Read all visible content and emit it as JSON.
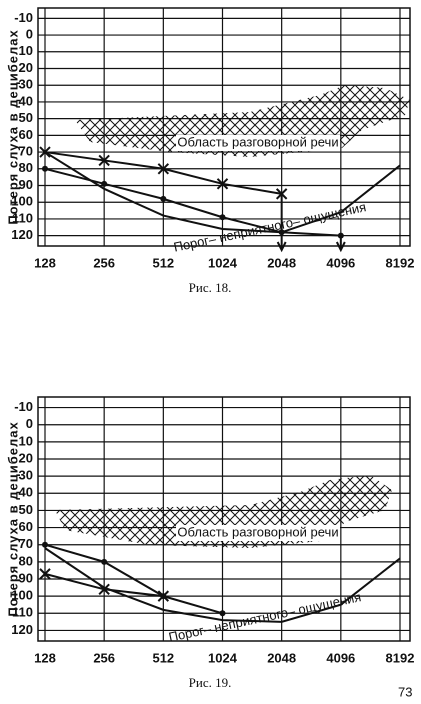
{
  "page_number": "73",
  "chart_data": [
    {
      "type": "line",
      "caption": "Рис. 18.",
      "ylabel": "Потеря слуха в децибелах",
      "x_scale": "log",
      "xlim": [
        128,
        8192
      ],
      "xticks": [
        128,
        256,
        512,
        1024,
        2048,
        4096,
        8192
      ],
      "ylim": [
        125,
        -15
      ],
      "yticks": [
        -10,
        0,
        10,
        20,
        30,
        40,
        50,
        60,
        70,
        80,
        90,
        100,
        110,
        120
      ],
      "grid": true,
      "annotations": [
        "Область разговорной речи",
        "Порог– неприятного– ощущения"
      ],
      "series": [
        {
          "color": "#111111",
          "marker": "none",
          "end_arrow": false,
          "x": [
            128,
            256,
            512,
            1024,
            2048,
            4096,
            8192
          ],
          "values": [
            70,
            92,
            108,
            116,
            118,
            106,
            78
          ]
        },
        {
          "color": "#111111",
          "marker": "x",
          "end_arrow": true,
          "x": [
            128,
            256,
            512,
            1024,
            2048
          ],
          "values": [
            70,
            75,
            80,
            89,
            95
          ]
        },
        {
          "color": "#111111",
          "marker": "o",
          "end_arrow": true,
          "x": [
            128,
            256,
            512,
            1024,
            2048,
            4096
          ],
          "values": [
            80,
            89,
            98,
            109,
            118,
            120
          ]
        }
      ]
    },
    {
      "type": "line",
      "caption": "Рис. 19.",
      "ylabel": "Потеря слуха в децибелах",
      "x_scale": "log",
      "xlim": [
        128,
        8192
      ],
      "xticks": [
        128,
        256,
        512,
        1024,
        2048,
        4096,
        8192
      ],
      "ylim": [
        125,
        -15
      ],
      "yticks": [
        -10,
        0,
        10,
        20,
        30,
        40,
        50,
        60,
        70,
        80,
        90,
        100,
        110,
        120
      ],
      "grid": true,
      "annotations": [
        "Область разговорной речи",
        "Порог– неприятного– ощущения"
      ],
      "series": [
        {
          "color": "#111111",
          "marker": "none",
          "end_arrow": false,
          "x": [
            128,
            256,
            512,
            1024,
            2048,
            4096,
            8192
          ],
          "values": [
            72,
            95,
            108,
            114,
            115,
            105,
            78
          ]
        },
        {
          "color": "#111111",
          "marker": "o",
          "end_arrow": false,
          "x": [
            128,
            256,
            512,
            1024
          ],
          "values": [
            70,
            80,
            100,
            110
          ]
        },
        {
          "color": "#111111",
          "marker": "x",
          "end_arrow": false,
          "x": [
            128,
            256,
            512
          ],
          "values": [
            87,
            96,
            100
          ]
        }
      ]
    }
  ]
}
